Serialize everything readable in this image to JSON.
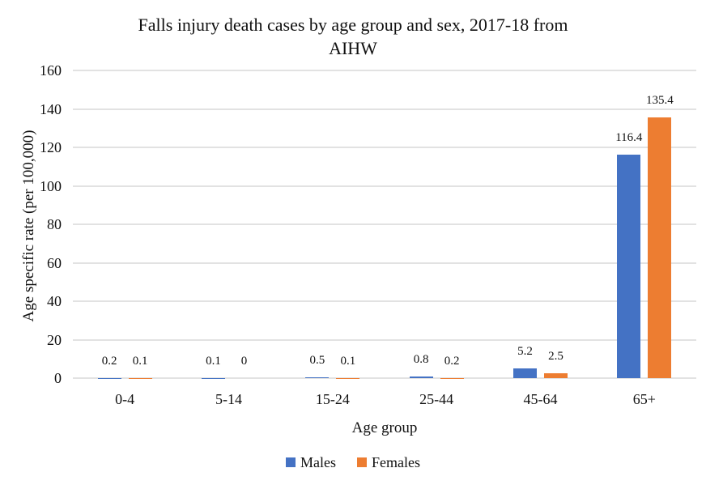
{
  "chart_data": {
    "type": "bar",
    "title": "Falls injury death cases by age group and sex, 2017-18 from AIHW",
    "title_lines": [
      "Falls injury death cases by age group and sex, 2017-18 from",
      "AIHW"
    ],
    "xlabel": "Age group",
    "ylabel": "Age specific rate (per 100,000)",
    "ylim": [
      0,
      160
    ],
    "yticks": [
      0,
      20,
      40,
      60,
      80,
      100,
      120,
      140,
      160
    ],
    "grid": true,
    "legend_position": "bottom",
    "categories": [
      "0-4",
      "5-14",
      "15-24",
      "25-44",
      "45-64",
      "65+"
    ],
    "series": [
      {
        "name": "Males",
        "color": "#4472C4",
        "values": [
          0.2,
          0.1,
          0.5,
          0.8,
          5.2,
          116.4
        ],
        "labels": [
          "0.2",
          "0.1",
          "0.5",
          "0.8",
          "5.2",
          "116.4"
        ]
      },
      {
        "name": "Females",
        "color": "#ED7D31",
        "values": [
          0.1,
          0,
          0.1,
          0.2,
          2.5,
          135.4
        ],
        "labels": [
          "0.1",
          "0",
          "0.1",
          "0.2",
          "2.5",
          "135.4"
        ]
      }
    ]
  },
  "colors": {
    "gridline": "#E2E2E2",
    "text": "#111111",
    "background": "#FFFFFF"
  }
}
